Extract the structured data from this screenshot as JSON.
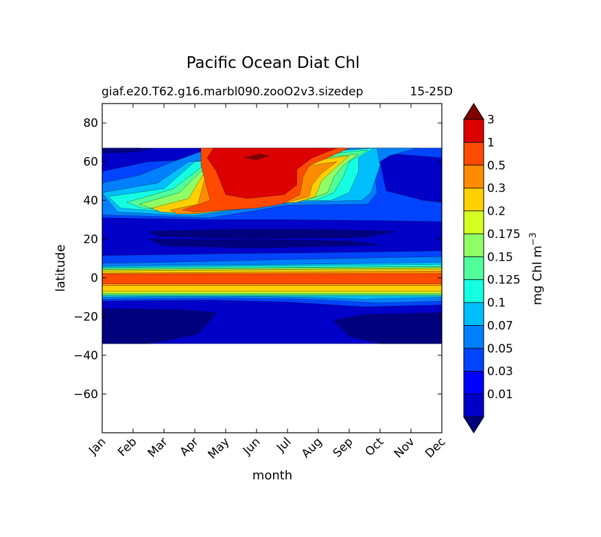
{
  "chart_data": {
    "type": "heatmap",
    "title": "Pacific Ocean Diat Chl",
    "subtitle_left": "giaf.e20.T62.g16.marbl090.zooO2v3.sizedep",
    "subtitle_right": "15-25D",
    "xlabel": "month",
    "ylabel": "latitude",
    "x_categories": [
      "Jan",
      "Feb",
      "Mar",
      "Apr",
      "May",
      "Jun",
      "Jul",
      "Aug",
      "Sep",
      "Oct",
      "Nov",
      "Dec"
    ],
    "xlim": [
      0,
      11
    ],
    "ylim": [
      -80,
      90
    ],
    "y_ticks": [
      80,
      60,
      40,
      20,
      0,
      -20,
      -40,
      -60
    ],
    "y_tick_labels": [
      "80",
      "60",
      "40",
      "20",
      "0",
      "−20",
      "−40",
      "−60"
    ],
    "data_extent": {
      "lat_min": -34,
      "lat_max": 67
    },
    "colorbar": {
      "label": "mg Chl m",
      "label_superscript": "−3",
      "tick_labels": [
        "0.01",
        "0.03",
        "0.05",
        "0.07",
        "0.1",
        "0.125",
        "0.15",
        "0.175",
        "0.2",
        "0.3",
        "0.5",
        "1",
        "3"
      ],
      "colors": [
        "#00007f",
        "#0000c8",
        "#0000ff",
        "#0044ff",
        "#0080ff",
        "#00bfff",
        "#15ffe2",
        "#50ff9c",
        "#90ff66",
        "#d4ff23",
        "#ffd000",
        "#ff8c00",
        "#ff4a00",
        "#dd0000",
        "#800000"
      ],
      "extend": "both"
    },
    "contour_bands": [
      {
        "level": 1,
        "color": "#0000c8",
        "poly": [
          [
            0,
            67
          ],
          [
            11,
            67
          ],
          [
            11,
            -34
          ],
          [
            0,
            -34
          ]
        ]
      },
      {
        "level": 0,
        "color": "#00007f",
        "poly": [
          [
            0,
            67
          ],
          [
            1.2,
            67
          ],
          [
            1.6,
            66.5
          ],
          [
            1.0,
            65
          ],
          [
            0,
            64.5
          ]
        ]
      },
      {
        "level": 0,
        "color": "#00007f",
        "poly": [
          [
            0,
            -16
          ],
          [
            2.5,
            -16.5
          ],
          [
            3.7,
            -18
          ],
          [
            3.1,
            -29
          ],
          [
            1.5,
            -34
          ],
          [
            0,
            -34
          ]
        ]
      },
      {
        "level": 0,
        "color": "#00007f",
        "poly": [
          [
            11,
            -18
          ],
          [
            8.5,
            -19
          ],
          [
            7.5,
            -22
          ],
          [
            8.0,
            -30
          ],
          [
            9,
            -34
          ],
          [
            11,
            -34
          ]
        ]
      },
      {
        "level": 0,
        "color": "#00007f",
        "poly": [
          [
            1.5,
            24
          ],
          [
            4,
            25
          ],
          [
            7,
            25
          ],
          [
            9.5,
            24
          ],
          [
            8.5,
            21
          ],
          [
            5,
            20
          ],
          [
            1.8,
            21.5
          ]
        ]
      },
      {
        "level": 0,
        "color": "#00007f",
        "poly": [
          [
            1.5,
            20
          ],
          [
            5,
            19.5
          ],
          [
            8,
            19
          ],
          [
            9,
            17
          ],
          [
            5,
            15.5
          ],
          [
            2,
            16.5
          ]
        ]
      },
      {
        "level": 3,
        "color": "#0044ff",
        "poly": [
          [
            0,
            55
          ],
          [
            1.5,
            60
          ],
          [
            2.7,
            61
          ],
          [
            4,
            67
          ],
          [
            11,
            67
          ],
          [
            11,
            62
          ],
          [
            9.4,
            64
          ],
          [
            9.0,
            60
          ],
          [
            9.2,
            45
          ],
          [
            10.4,
            40
          ],
          [
            11,
            39
          ],
          [
            11,
            29
          ],
          [
            9,
            29.5
          ],
          [
            6,
            30
          ],
          [
            3.5,
            30
          ],
          [
            0,
            31
          ]
        ]
      },
      {
        "level": 4,
        "color": "#0080ff",
        "poly": [
          [
            0,
            49
          ],
          [
            1.2,
            53
          ],
          [
            2.3,
            60
          ],
          [
            3.5,
            67
          ],
          [
            10.2,
            67
          ],
          [
            9.3,
            63
          ],
          [
            8.8,
            58
          ],
          [
            8.9,
            44
          ],
          [
            8.6,
            38
          ],
          [
            6,
            37.5
          ],
          [
            3.5,
            31
          ],
          [
            0,
            32.5
          ]
        ]
      },
      {
        "level": 5,
        "color": "#00bfff",
        "poly": [
          [
            0,
            44
          ],
          [
            1.8,
            49
          ],
          [
            2.8,
            60
          ],
          [
            8.9,
            67
          ],
          [
            9.0,
            58
          ],
          [
            8.7,
            44
          ],
          [
            8.4,
            40
          ],
          [
            6,
            39
          ],
          [
            3,
            32
          ],
          [
            0.5,
            34
          ]
        ]
      },
      {
        "level": 6,
        "color": "#15ffe2",
        "poly": [
          [
            0.2,
            42
          ],
          [
            2.0,
            46
          ],
          [
            3.0,
            60
          ],
          [
            8.8,
            67
          ],
          [
            8.3,
            62
          ],
          [
            8.3,
            55
          ],
          [
            8.0,
            44
          ],
          [
            7.4,
            40
          ],
          [
            6,
            40
          ],
          [
            3,
            33
          ],
          [
            0.6,
            36
          ]
        ]
      },
      {
        "level": 7,
        "color": "#50ff9c",
        "poly": [
          [
            0.8,
            39
          ],
          [
            2.3,
            46
          ],
          [
            3.2,
            57
          ],
          [
            8.6,
            66
          ],
          [
            8.0,
            60
          ],
          [
            7.8,
            52
          ],
          [
            7.5,
            44
          ],
          [
            6.9,
            40
          ],
          [
            5.7,
            40
          ],
          [
            3,
            34
          ],
          [
            1.3,
            36
          ]
        ]
      },
      {
        "level": 8,
        "color": "#90ff66",
        "poly": [
          [
            1.2,
            38
          ],
          [
            2.5,
            44
          ],
          [
            3.2,
            55
          ],
          [
            8.3,
            64
          ],
          [
            7.8,
            58
          ],
          [
            7.5,
            52
          ],
          [
            7.3,
            44
          ],
          [
            6.6,
            40
          ],
          [
            5.5,
            39
          ],
          [
            3,
            34
          ],
          [
            1.6,
            36
          ]
        ]
      },
      {
        "level": 10,
        "color": "#ffd000",
        "poly": [
          [
            1.6,
            36
          ],
          [
            2.8,
            41
          ],
          [
            3.25,
            53
          ],
          [
            8.0,
            63
          ],
          [
            7.5,
            56
          ],
          [
            7.1,
            50
          ],
          [
            6.9,
            42
          ],
          [
            6.3,
            39
          ],
          [
            5.3,
            38
          ],
          [
            3,
            33
          ],
          [
            1.9,
            34
          ]
        ]
      },
      {
        "level": 11,
        "color": "#ff8c00",
        "poly": [
          [
            2.2,
            35
          ],
          [
            3.1,
            38
          ],
          [
            3.3,
            50
          ],
          [
            7.6,
            60
          ],
          [
            7.1,
            54
          ],
          [
            6.8,
            48
          ],
          [
            6.7,
            42
          ],
          [
            6.0,
            39
          ],
          [
            5.2,
            37
          ],
          [
            3,
            33
          ],
          [
            2.4,
            33
          ]
        ]
      },
      {
        "level": 12,
        "color": "#ff4a00",
        "poly": [
          [
            2.6,
            35
          ],
          [
            3.5,
            40
          ],
          [
            3.2,
            58
          ],
          [
            3.2,
            67
          ],
          [
            8.0,
            67
          ],
          [
            7.3,
            62
          ],
          [
            6.7,
            58
          ],
          [
            6.5,
            52
          ],
          [
            6.4,
            43
          ],
          [
            5.8,
            38
          ],
          [
            5,
            36
          ],
          [
            3,
            34
          ]
        ]
      },
      {
        "level": 13,
        "color": "#dd0000",
        "poly": [
          [
            3.6,
            67
          ],
          [
            7.6,
            67
          ],
          [
            6.8,
            62
          ],
          [
            6.3,
            56
          ],
          [
            6.3,
            48
          ],
          [
            5.9,
            43
          ],
          [
            4.7,
            41
          ],
          [
            4.0,
            43
          ],
          [
            3.7,
            55
          ],
          [
            3.4,
            62
          ]
        ]
      },
      {
        "level": 14,
        "color": "#800000",
        "poly": [
          [
            4.6,
            62
          ],
          [
            5.1,
            64
          ],
          [
            5.4,
            63
          ],
          [
            5.0,
            61
          ]
        ]
      },
      {
        "level": 3,
        "color": "#0044ff",
        "poly": [
          [
            0,
            -12
          ],
          [
            3.5,
            -11.5
          ],
          [
            6,
            -12.5
          ],
          [
            8.5,
            -15
          ],
          [
            11,
            -14
          ],
          [
            11,
            14
          ],
          [
            7,
            13
          ],
          [
            4,
            12.5
          ],
          [
            0,
            11.5
          ]
        ]
      },
      {
        "level": 4,
        "color": "#0080ff",
        "poly": [
          [
            0,
            -11
          ],
          [
            4,
            -10.5
          ],
          [
            6.5,
            -11
          ],
          [
            9,
            -13
          ],
          [
            11,
            -12
          ],
          [
            11,
            11
          ],
          [
            6,
            9.5
          ],
          [
            2,
            8
          ],
          [
            0,
            7.5
          ]
        ]
      },
      {
        "level": 5,
        "color": "#00bfff",
        "poly": [
          [
            0,
            -10
          ],
          [
            4,
            -9.5
          ],
          [
            6.5,
            -10
          ],
          [
            8.5,
            -11
          ],
          [
            11,
            -10
          ],
          [
            11,
            8
          ],
          [
            6,
            7
          ],
          [
            2,
            6.5
          ],
          [
            0,
            6
          ]
        ]
      },
      {
        "level": 6,
        "color": "#15ffe2",
        "poly": [
          [
            0,
            -9.5
          ],
          [
            11,
            -9.5
          ],
          [
            11,
            7
          ],
          [
            0,
            5.5
          ]
        ]
      },
      {
        "level": 7,
        "color": "#50ff9c",
        "poly": [
          [
            0,
            -9
          ],
          [
            11,
            -9
          ],
          [
            11,
            6
          ],
          [
            0,
            5
          ]
        ]
      },
      {
        "level": 8,
        "color": "#90ff66",
        "poly": [
          [
            0,
            -8.5
          ],
          [
            11,
            -8.5
          ],
          [
            11,
            5.5
          ],
          [
            0,
            4.5
          ]
        ]
      },
      {
        "level": 9,
        "color": "#d4ff23",
        "poly": [
          [
            0,
            -8
          ],
          [
            11,
            -8
          ],
          [
            11,
            5
          ],
          [
            0,
            4
          ]
        ]
      },
      {
        "level": 10,
        "color": "#ffd000",
        "poly": [
          [
            0,
            -7
          ],
          [
            11,
            -7
          ],
          [
            11,
            4.5
          ],
          [
            0,
            3.5
          ]
        ]
      },
      {
        "level": 11,
        "color": "#ff8c00",
        "poly": [
          [
            0,
            -4
          ],
          [
            11,
            -4
          ],
          [
            11,
            3.5
          ],
          [
            0,
            2.5
          ]
        ]
      },
      {
        "level": 12,
        "color": "#ff4a00",
        "poly": [
          [
            0,
            -3
          ],
          [
            11,
            -3
          ],
          [
            11,
            2.2
          ],
          [
            0,
            2
          ]
        ]
      }
    ]
  }
}
